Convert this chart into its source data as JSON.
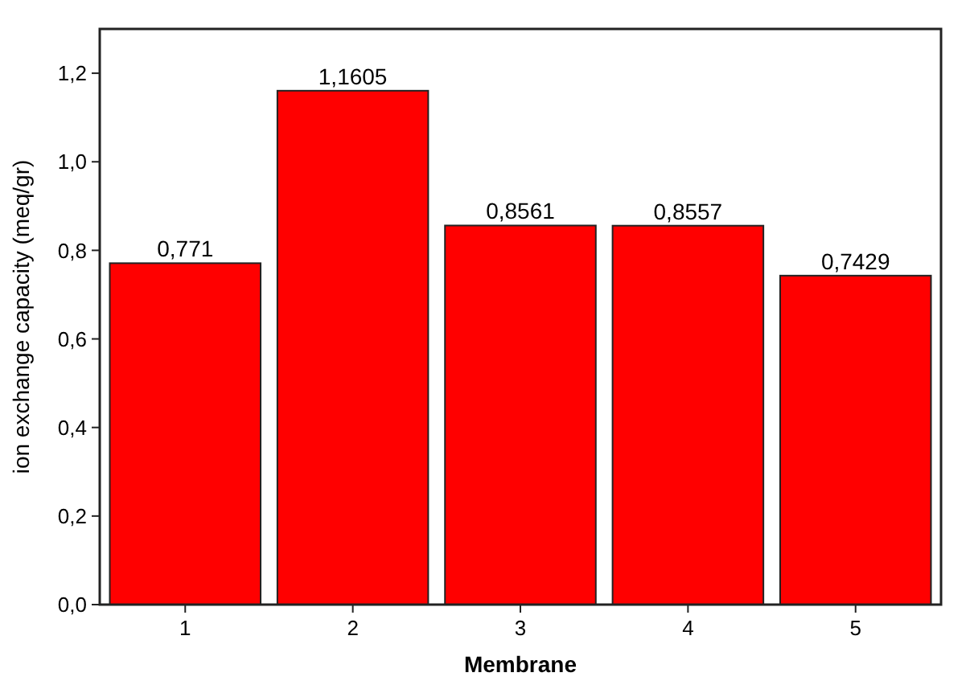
{
  "chart_data": {
    "type": "bar",
    "xlabel": "Membrane",
    "ylabel": "ion exchange capacity (meq/gr)",
    "categories": [
      "1",
      "2",
      "3",
      "4",
      "5"
    ],
    "values": [
      0.771,
      1.1605,
      0.8561,
      0.8557,
      0.7429
    ],
    "value_labels": [
      "0,771",
      "1,1605",
      "0,8561",
      "0,8557",
      "0,7429"
    ],
    "color": "#ff0000",
    "ylim": [
      0,
      1.3
    ],
    "yticks": [
      {
        "value": 0,
        "label": "0,0"
      },
      {
        "value": 0.2,
        "label": "0,2"
      },
      {
        "value": 0.4,
        "label": "0,4"
      },
      {
        "value": 0.6,
        "label": "0,6"
      },
      {
        "value": 0.8,
        "label": "0,8"
      },
      {
        "value": 1.0,
        "label": "1,0"
      },
      {
        "value": 1.2,
        "label": "1,2"
      }
    ],
    "grid": false
  }
}
